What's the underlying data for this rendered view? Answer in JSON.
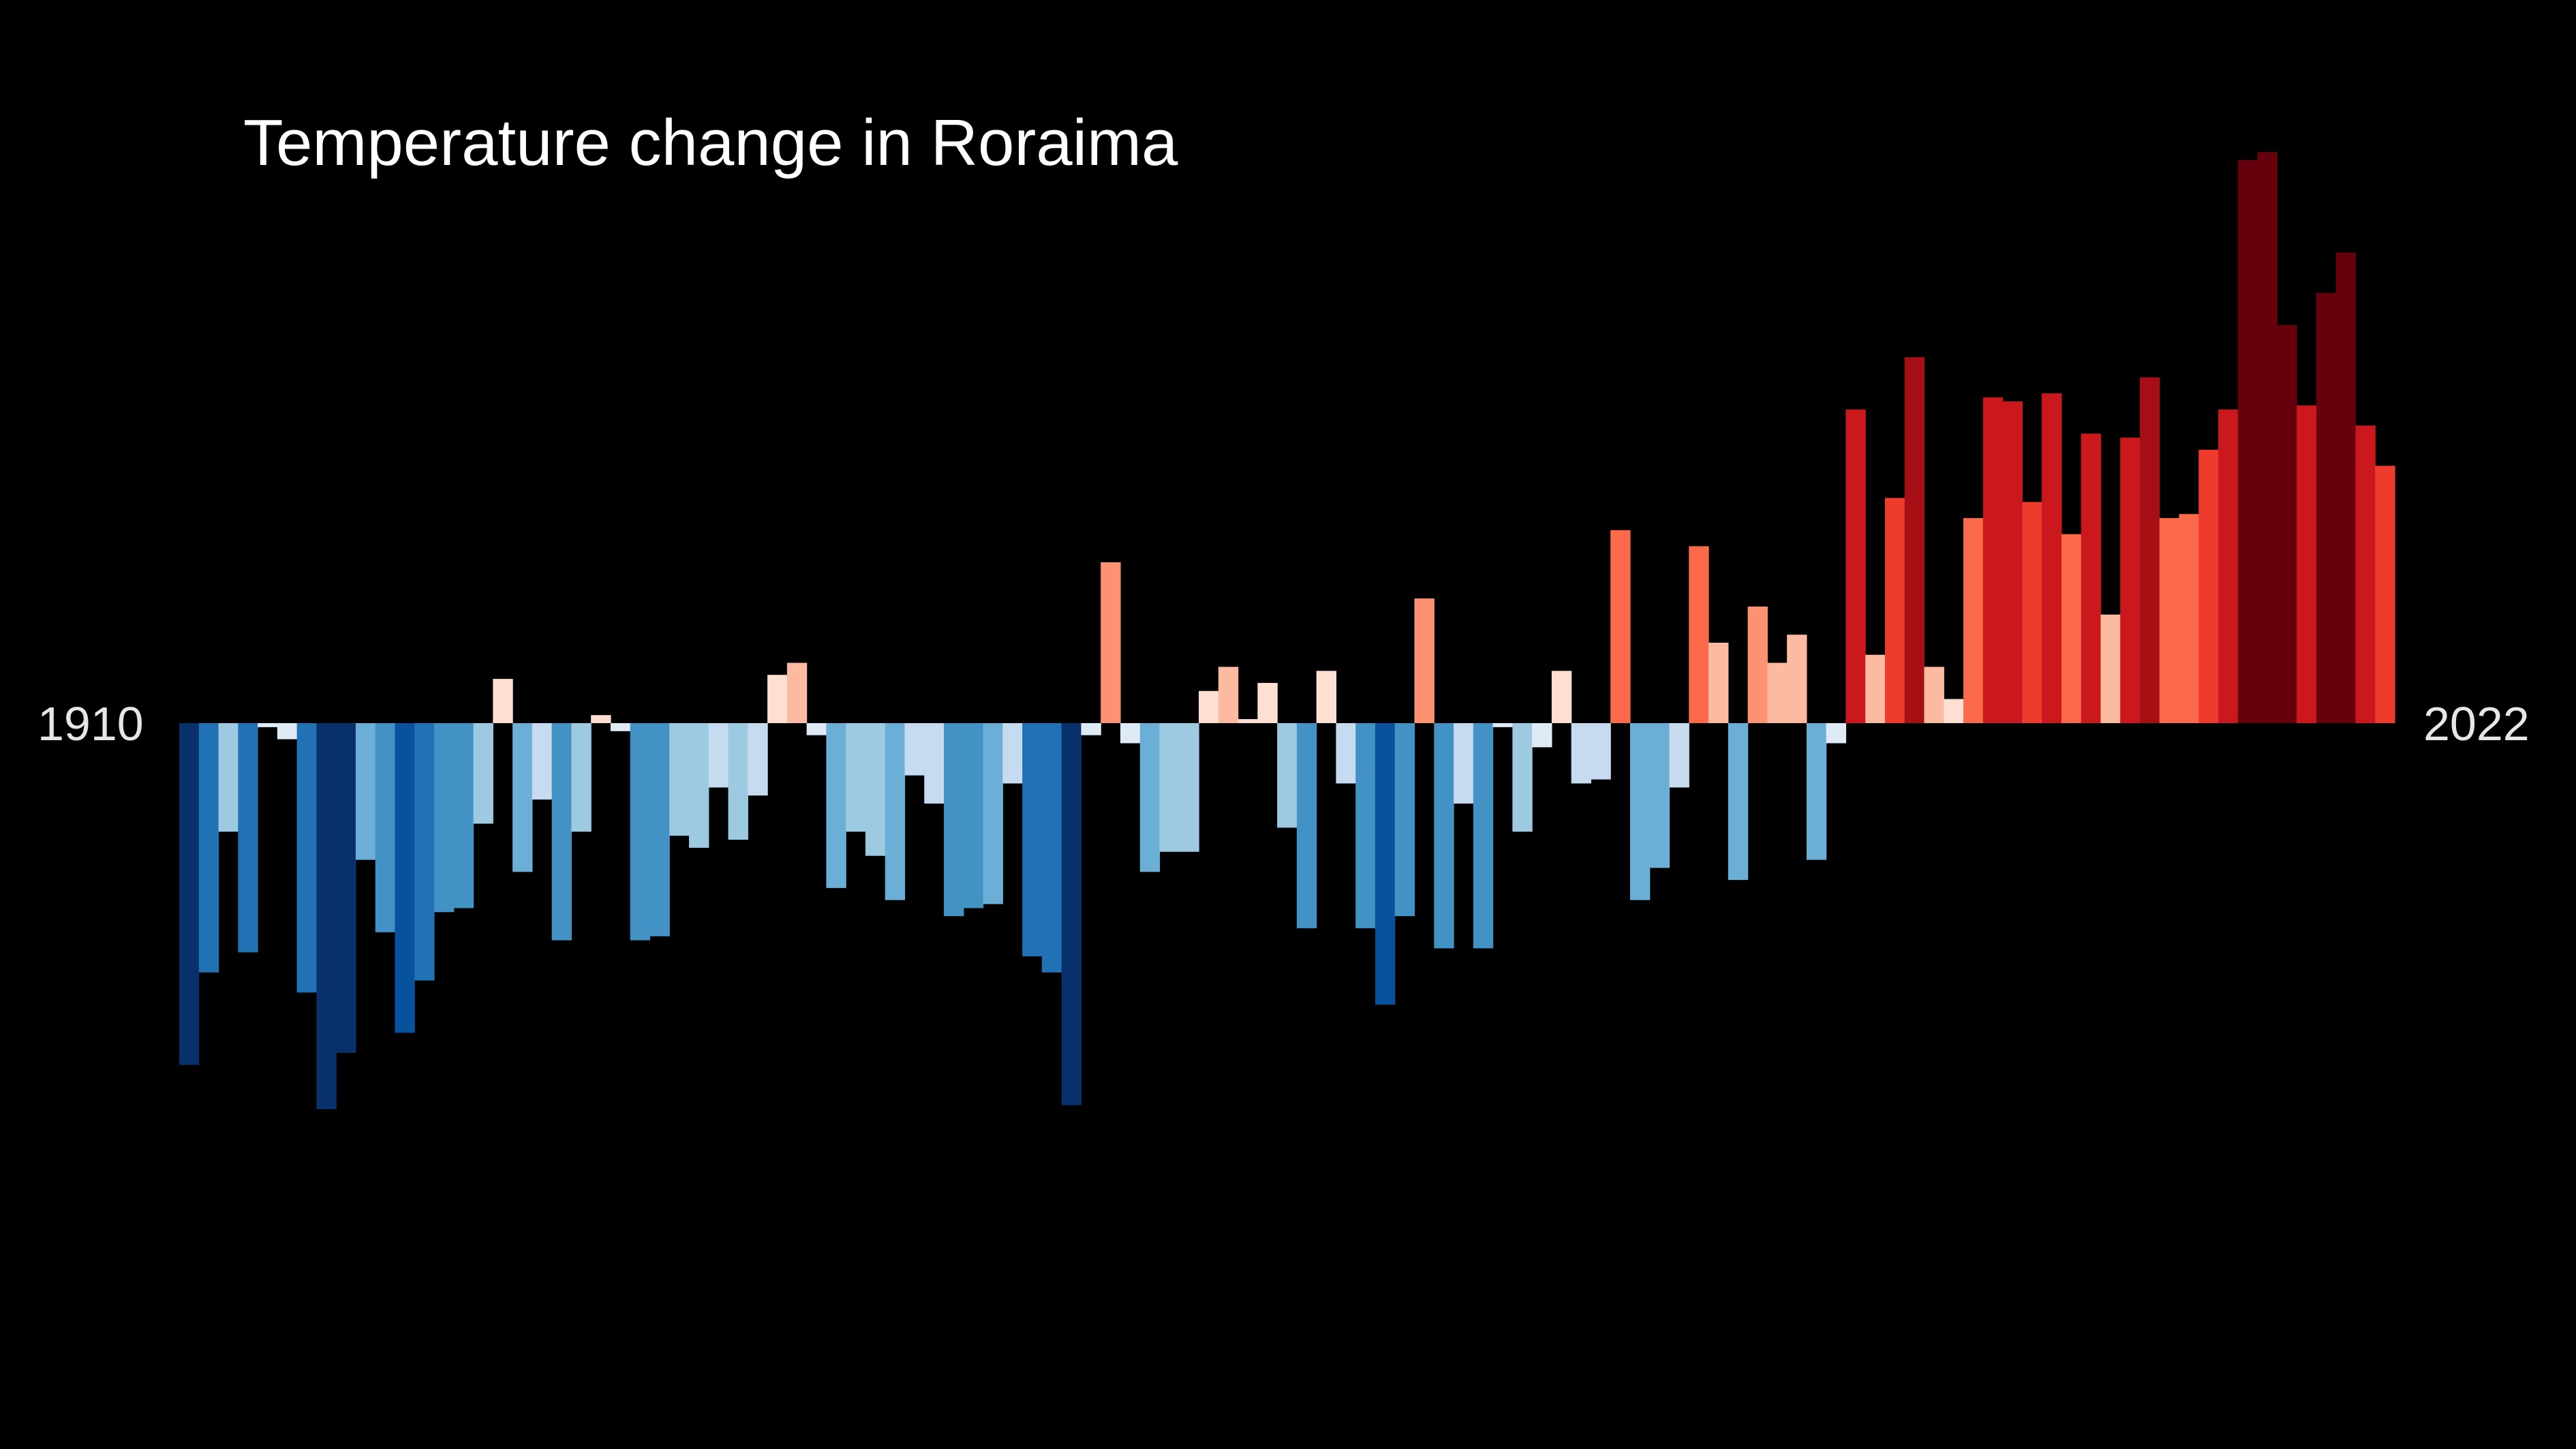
{
  "chart_data": {
    "type": "bar",
    "title": "Temperature change in Roraima",
    "x_start": 1910,
    "x_end": 2022,
    "start_label": "1910",
    "end_label": "2022",
    "values": [
      -0.85,
      -0.62,
      -0.27,
      -0.57,
      -0.01,
      -0.04,
      -0.67,
      -0.96,
      -0.82,
      -0.34,
      -0.52,
      -0.77,
      -0.64,
      -0.47,
      -0.46,
      -0.25,
      0.11,
      -0.37,
      -0.19,
      -0.54,
      -0.27,
      0.02,
      -0.02,
      -0.54,
      -0.53,
      -0.28,
      -0.31,
      -0.16,
      -0.29,
      -0.18,
      0.12,
      0.15,
      -0.03,
      -0.41,
      -0.27,
      -0.33,
      -0.44,
      -0.13,
      -0.2,
      -0.48,
      -0.46,
      -0.45,
      -0.15,
      -0.58,
      -0.62,
      -0.95,
      -0.03,
      0.4,
      -0.05,
      -0.37,
      -0.32,
      -0.32,
      0.08,
      0.14,
      0.01,
      0.1,
      -0.26,
      -0.51,
      0.13,
      -0.15,
      -0.51,
      -0.7,
      -0.48,
      0.31,
      -0.56,
      -0.2,
      -0.56,
      -0.01,
      -0.27,
      -0.06,
      0.13,
      -0.15,
      -0.14,
      0.48,
      -0.44,
      -0.36,
      -0.16,
      0.44,
      0.2,
      -0.39,
      0.29,
      0.15,
      0.22,
      -0.34,
      -0.05,
      0.78,
      0.17,
      0.56,
      0.91,
      0.14,
      0.06,
      0.51,
      0.81,
      0.8,
      0.55,
      0.82,
      0.47,
      0.72,
      0.27,
      0.71,
      0.86,
      0.51,
      0.52,
      0.68,
      0.78,
      1.4,
      1.42,
      0.99,
      0.79,
      1.07,
      1.17,
      0.74,
      0.64
    ],
    "ylim": [
      -1.1,
      1.6
    ],
    "grid": false,
    "legend": "none",
    "xlabel": "",
    "ylabel": ""
  }
}
